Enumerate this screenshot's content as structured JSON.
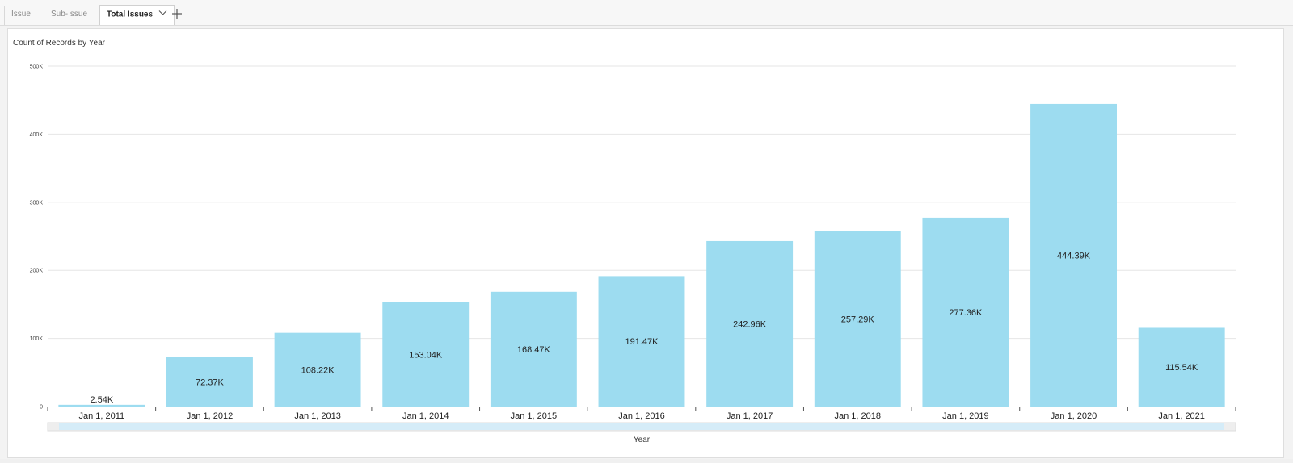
{
  "tabs": [
    {
      "label": "Issue"
    },
    {
      "label": "Sub-Issue"
    },
    {
      "label": "Total Issues"
    }
  ],
  "colors": {
    "bar": "#9ddcf0",
    "grid": "#e6e6e6",
    "scroll_track": "#eeeeee",
    "scroll_thumb": "#d5ecf8"
  },
  "chart_data": {
    "type": "bar",
    "title": "Count of Records by Year",
    "xlabel": "Year",
    "ylabel": "",
    "ylim": [
      0,
      500000
    ],
    "yticks": [
      {
        "value": 0,
        "label": "0"
      },
      {
        "value": 100000,
        "label": "100K"
      },
      {
        "value": 200000,
        "label": "200K"
      },
      {
        "value": 300000,
        "label": "300K"
      },
      {
        "value": 400000,
        "label": "400K"
      },
      {
        "value": 500000,
        "label": "500K"
      }
    ],
    "grid": true,
    "categories": [
      "Jan 1, 2011",
      "Jan 1, 2012",
      "Jan 1, 2013",
      "Jan 1, 2014",
      "Jan 1, 2015",
      "Jan 1, 2016",
      "Jan 1, 2017",
      "Jan 1, 2018",
      "Jan 1, 2019",
      "Jan 1, 2020",
      "Jan 1, 2021"
    ],
    "values": [
      2540,
      72370,
      108220,
      153040,
      168470,
      191470,
      242960,
      257290,
      277360,
      444390,
      115540
    ],
    "value_labels": [
      "2.54K",
      "72.37K",
      "108.22K",
      "153.04K",
      "168.47K",
      "191.47K",
      "242.96K",
      "257.29K",
      "277.36K",
      "444.39K",
      "115.54K"
    ]
  }
}
